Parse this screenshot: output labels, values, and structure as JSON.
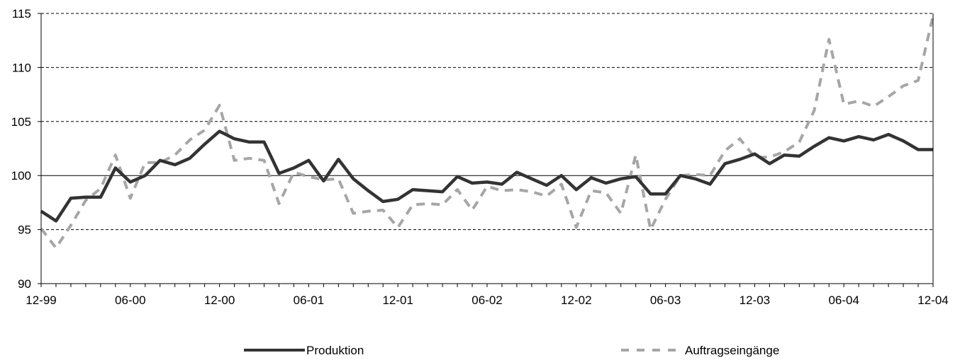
{
  "chart_data": {
    "type": "line",
    "title": "",
    "xlabel": "",
    "ylabel": "",
    "ylim": [
      90,
      115
    ],
    "yticks": [
      "90",
      "95",
      "100",
      "105",
      "110",
      "115"
    ],
    "x_tick_labels": [
      "12-99",
      "06-00",
      "12-00",
      "06-01",
      "12-01",
      "06-02",
      "12-02",
      "06-03",
      "12-03",
      "06-04",
      "12-04"
    ],
    "x_start": "1999-12",
    "x_end": "2004-12",
    "grid": "horizontal dashed at 95, 105, 110, 115; solid at 100",
    "legend_position": "bottom",
    "series": [
      {
        "name": "Produktion",
        "color": "#333333",
        "style": "solid",
        "values": [
          96.7,
          95.8,
          97.9,
          98.0,
          98.0,
          100.7,
          99.4,
          100.0,
          101.4,
          101.0,
          101.6,
          102.9,
          104.1,
          103.4,
          103.1,
          103.1,
          100.2,
          100.7,
          101.4,
          99.5,
          101.5,
          99.7,
          98.6,
          97.6,
          97.8,
          98.7,
          98.6,
          98.5,
          99.9,
          99.3,
          99.4,
          99.2,
          100.3,
          99.7,
          99.1,
          100.0,
          98.7,
          99.8,
          99.3,
          99.7,
          99.9,
          98.3,
          98.3,
          100.0,
          99.7,
          99.2,
          101.1,
          101.5,
          102.0,
          101.1,
          101.9,
          101.8,
          102.7,
          103.5,
          103.2,
          103.6,
          103.3,
          103.8,
          103.2,
          102.4,
          102.4
        ]
      },
      {
        "name": "Auftragseingänge",
        "color": "#a6a6a6",
        "style": "dashed",
        "values": [
          95.1,
          93.3,
          95.4,
          97.7,
          98.8,
          101.9,
          97.9,
          101.2,
          101.2,
          101.9,
          103.3,
          104.2,
          106.5,
          101.4,
          101.6,
          101.4,
          97.4,
          100.3,
          99.9,
          99.6,
          99.7,
          96.5,
          96.7,
          96.8,
          95.2,
          97.3,
          97.4,
          97.3,
          98.7,
          96.8,
          99.0,
          98.6,
          98.7,
          98.5,
          98.1,
          99.2,
          95.2,
          98.6,
          98.4,
          96.5,
          101.9,
          95.0,
          97.8,
          100.0,
          100.1,
          100.0,
          102.3,
          103.4,
          101.7,
          101.7,
          102.2,
          103.1,
          106.0,
          112.6,
          106.6,
          106.9,
          106.4,
          107.3,
          108.3,
          108.8,
          114.8
        ]
      }
    ]
  }
}
